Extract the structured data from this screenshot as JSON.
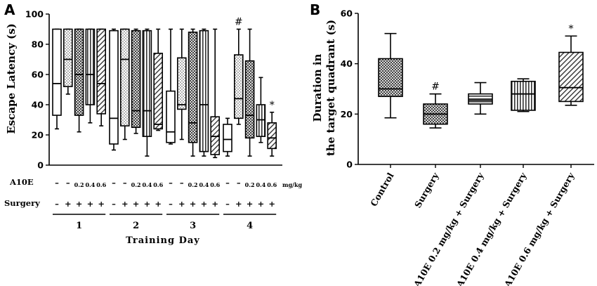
{
  "chart_data": [
    {
      "panel": "A",
      "type": "box",
      "ylabel": "Escape Latency (s)",
      "xlabel": "Training Day",
      "ylim": [
        0,
        100
      ],
      "yticks": [
        "0",
        "20",
        "40",
        "60",
        "80",
        "100"
      ],
      "row_labels": {
        "drug": "A10E",
        "surgery": "Surgery"
      },
      "unit": "mg/kg",
      "groups": [
        {
          "day": "1",
          "boxes": [
            {
              "drug": "-",
              "surgery": "-",
              "pattern": "white",
              "min": 24,
              "q1": 33,
              "median": 54,
              "q3": 90,
              "max": 90
            },
            {
              "drug": "-",
              "surgery": "+",
              "pattern": "dots",
              "min": 47,
              "q1": 52,
              "median": 70,
              "q3": 90,
              "max": 90
            },
            {
              "drug": "0.2",
              "surgery": "+",
              "pattern": "checker",
              "min": 22,
              "q1": 33,
              "median": 60,
              "q3": 90,
              "max": 90
            },
            {
              "drug": "0.4",
              "surgery": "+",
              "pattern": "vstripe",
              "min": 28,
              "q1": 40,
              "median": 60,
              "q3": 90,
              "max": 90
            },
            {
              "drug": "0.6",
              "surgery": "+",
              "pattern": "hatch",
              "min": 26,
              "q1": 34,
              "median": 54,
              "q3": 90,
              "max": 90
            }
          ]
        },
        {
          "day": "2",
          "boxes": [
            {
              "drug": "-",
              "surgery": "-",
              "pattern": "white",
              "min": 10,
              "q1": 14,
              "median": 31,
              "q3": 89,
              "max": 90
            },
            {
              "drug": "-",
              "surgery": "+",
              "pattern": "dots",
              "min": 17,
              "q1": 26,
              "median": 70,
              "q3": 90,
              "max": 90
            },
            {
              "drug": "0.2",
              "surgery": "+",
              "pattern": "checker",
              "min": 21,
              "q1": 25,
              "median": 36,
              "q3": 89,
              "max": 90
            },
            {
              "drug": "0.4",
              "surgery": "+",
              "pattern": "vstripe",
              "min": 6,
              "q1": 19,
              "median": 36,
              "q3": 89,
              "max": 90
            },
            {
              "drug": "0.6",
              "surgery": "+",
              "pattern": "hatch",
              "min": 23,
              "q1": 24,
              "median": 27,
              "q3": 74,
              "max": 90
            }
          ]
        },
        {
          "day": "3",
          "boxes": [
            {
              "drug": "-",
              "surgery": "-",
              "pattern": "white",
              "min": 14,
              "q1": 15,
              "median": 22,
              "q3": 49,
              "max": 90
            },
            {
              "drug": "-",
              "surgery": "+",
              "pattern": "dots",
              "min": 17,
              "q1": 37,
              "median": 40,
              "q3": 71,
              "max": 90
            },
            {
              "drug": "0.2",
              "surgery": "+",
              "pattern": "checker",
              "min": 6,
              "q1": 15,
              "median": 28,
              "q3": 88,
              "max": 90
            },
            {
              "drug": "0.4",
              "surgery": "+",
              "pattern": "vstripe",
              "min": 6,
              "q1": 9,
              "median": 40,
              "q3": 89,
              "max": 90
            },
            {
              "drug": "0.6",
              "surgery": "+",
              "pattern": "hatch",
              "min": 5,
              "q1": 7,
              "median": 19,
              "q3": 32,
              "max": 90
            }
          ]
        },
        {
          "day": "4",
          "boxes": [
            {
              "drug": "-",
              "surgery": "-",
              "pattern": "white",
              "min": 6,
              "q1": 9,
              "median": 17,
              "q3": 27,
              "max": 31
            },
            {
              "drug": "-",
              "surgery": "+",
              "pattern": "dots",
              "min": 27,
              "q1": 31,
              "median": 44,
              "q3": 73,
              "max": 90,
              "annotation": "#"
            },
            {
              "drug": "0.2",
              "surgery": "+",
              "pattern": "checker",
              "min": 6,
              "q1": 18,
              "median": 33,
              "q3": 69,
              "max": 90
            },
            {
              "drug": "0.4",
              "surgery": "+",
              "pattern": "vstripe",
              "min": 15,
              "q1": 19,
              "median": 30,
              "q3": 40,
              "max": 58
            },
            {
              "drug": "0.6",
              "surgery": "+",
              "pattern": "hatch",
              "min": 6,
              "q1": 11,
              "median": 18,
              "q3": 28,
              "max": 35,
              "annotation": "*"
            }
          ]
        }
      ]
    },
    {
      "panel": "B",
      "type": "box",
      "ylabel_lines": [
        "Duration in",
        "the target quadrant (s)"
      ],
      "ylim": [
        0,
        60
      ],
      "yticks": [
        "0",
        "20",
        "40",
        "60"
      ],
      "categories": [
        "Control",
        "Surgery",
        "A10E 0.2 mg/kg + Surgery",
        "A10E 0.4 mg/kg + Surgery",
        "A10E 0.6 mg/kg + Surgery"
      ],
      "boxes": [
        {
          "pattern": "checker",
          "min": 18.5,
          "q1": 27,
          "median": 30,
          "q3": 42,
          "max": 52
        },
        {
          "pattern": "checker",
          "min": 14.5,
          "q1": 16,
          "median": 20,
          "q3": 24,
          "max": 28,
          "annotation": "#"
        },
        {
          "pattern": "hstripe",
          "min": 20,
          "q1": 24,
          "median": 25.5,
          "q3": 28,
          "max": 32.5
        },
        {
          "pattern": "vstripe",
          "min": 21,
          "q1": 21.5,
          "median": 28,
          "q3": 33,
          "max": 34
        },
        {
          "pattern": "hatch",
          "min": 23.5,
          "q1": 25,
          "median": 30.5,
          "q3": 44.5,
          "max": 51,
          "annotation": "*"
        }
      ]
    }
  ]
}
